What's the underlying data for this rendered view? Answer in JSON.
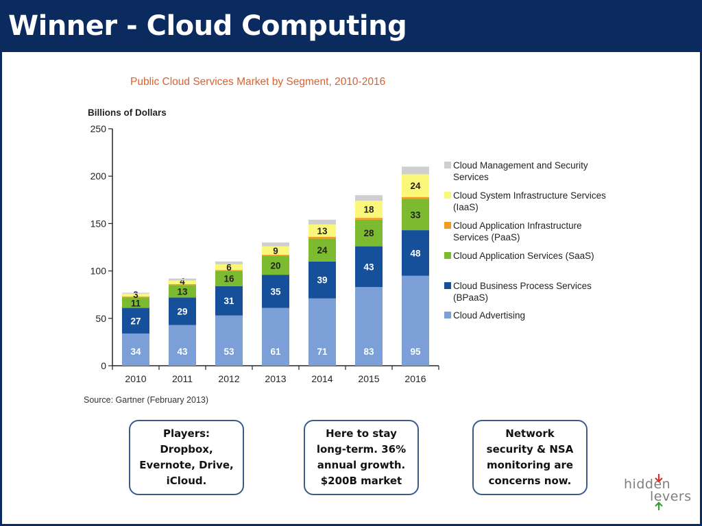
{
  "slide": {
    "title": "Winner - Cloud Computing"
  },
  "chart_data": {
    "type": "bar",
    "stacked": true,
    "title": "Public Cloud Services Market by Segment, 2010-2016",
    "ylabel": "Billions of Dollars",
    "source": "Source: Gartner (February 2013)",
    "ylim": [
      0,
      250
    ],
    "yticks": [
      0,
      50,
      100,
      150,
      200,
      250
    ],
    "categories": [
      "2010",
      "2011",
      "2012",
      "2013",
      "2014",
      "2015",
      "2016"
    ],
    "legend_position": "right",
    "series": [
      {
        "name": "Cloud Advertising",
        "color": "#7b9fd6",
        "values": [
          34,
          43,
          53,
          61,
          71,
          83,
          95
        ],
        "labels": [
          "34",
          "43",
          "53",
          "61",
          "71",
          "83",
          "95"
        ]
      },
      {
        "name": "Cloud Business Process Services (BPaaS)",
        "color": "#17509a",
        "values": [
          27,
          29,
          31,
          35,
          39,
          43,
          48
        ],
        "labels": [
          "27",
          "29",
          "31",
          "35",
          "39",
          "43",
          "48"
        ]
      },
      {
        "name": "Cloud Application Services (SaaS)",
        "color": "#7cba2f",
        "values": [
          11,
          13,
          16,
          20,
          24,
          28,
          33
        ],
        "labels": [
          "11",
          "13",
          "16",
          "20",
          "24",
          "28",
          "33"
        ]
      },
      {
        "name": "Cloud Application Infrastructure Services (PaaS)",
        "color": "#f39c1f",
        "values": [
          1,
          1,
          1,
          1,
          2,
          2,
          2
        ],
        "labels": [
          "",
          "",
          "",
          "",
          "",
          "",
          ""
        ]
      },
      {
        "name": "Cloud System Infrastructure Services (IaaS)",
        "color": "#fbf77a",
        "values": [
          3,
          4,
          6,
          9,
          13,
          18,
          24
        ],
        "labels": [
          "3",
          "4",
          "6",
          "9",
          "13",
          "18",
          "24"
        ]
      },
      {
        "name": "Cloud Management and Security Services",
        "color": "#cfcfcf",
        "values": [
          1,
          2,
          3,
          4,
          5,
          6,
          8
        ],
        "labels": [
          "",
          "",
          "",
          "",
          "",
          "",
          ""
        ]
      }
    ]
  },
  "legend": [
    {
      "lines": [
        "Cloud Management and Security",
        "Services"
      ],
      "color": "#cfcfcf"
    },
    {
      "lines": [
        "Cloud System Infrastructure Services",
        "(IaaS)"
      ],
      "color": "#fbf77a"
    },
    {
      "lines": [
        "Cloud Application  Infrastructure",
        "Services (PaaS)"
      ],
      "color": "#f39c1f"
    },
    {
      "lines": [
        "Cloud Application Services (SaaS)"
      ],
      "color": "#7cba2f"
    },
    {
      "lines": [
        "Cloud Business Process Services",
        "(BPaaS)"
      ],
      "color": "#17509a"
    },
    {
      "lines": [
        "Cloud Advertising"
      ],
      "color": "#7b9fd6"
    }
  ],
  "callouts": [
    {
      "text": "Players: Dropbox, Evernote, Drive, iCloud."
    },
    {
      "text": "Here to stay long-term. 36% annual growth. $200B market"
    },
    {
      "text": "Network security & NSA monitoring are concerns now."
    }
  ],
  "logo": {
    "line1": "hidden",
    "line2": "levers",
    "arrow_down_color": "#d9322a",
    "arrow_up_color": "#3a9b3a"
  }
}
